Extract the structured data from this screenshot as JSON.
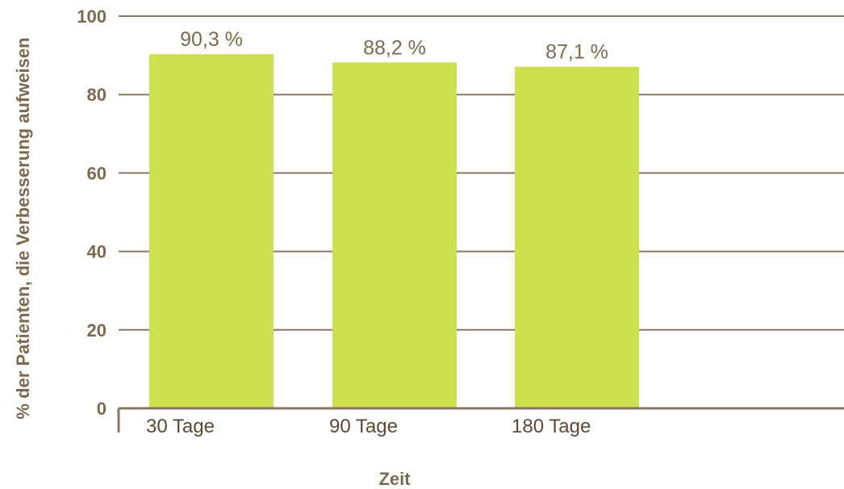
{
  "chart_data": {
    "type": "bar",
    "categories": [
      "30 Tage",
      "90 Tage",
      "180 Tage"
    ],
    "values": [
      90.3,
      88.2,
      87.1
    ],
    "data_labels": [
      "90,3 %",
      "88,2 %",
      "87,1 %"
    ],
    "xlabel": "Zeit",
    "ylabel": "% der Patienten, die Verbesserung aufweisen",
    "ylim": [
      0,
      100
    ],
    "yticks": [
      0,
      20,
      40,
      60,
      80,
      100
    ],
    "grid": true,
    "colors": {
      "bar": "#cde04f",
      "grid": "#857760",
      "text": "#7b6a4f"
    }
  }
}
